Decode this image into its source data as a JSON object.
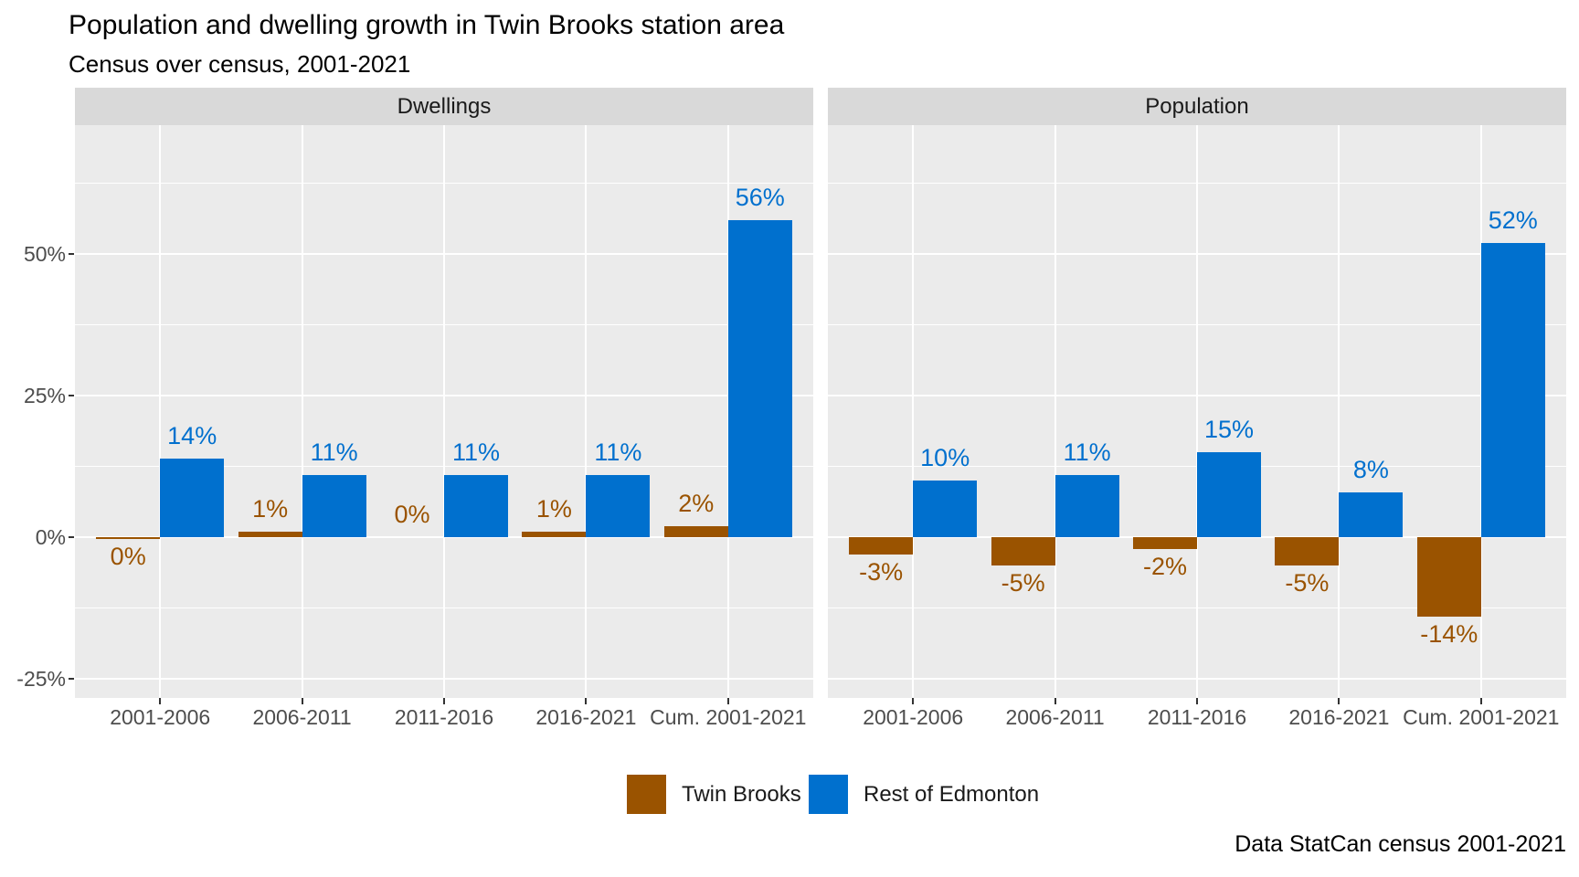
{
  "title": "Population and dwelling growth in Twin Brooks station area",
  "subtitle": "Census over census, 2001-2021",
  "caption": "Data StatCan census 2001-2021",
  "colors": {
    "twin_brooks": "#9A5300",
    "rest_of_edmonton": "#0070CE",
    "panel_background": "#EBEBEB",
    "strip_background": "#D9D9D9",
    "gridline": "#FFFFFF",
    "axis_text": "#4D4D4D"
  },
  "legend": {
    "items": [
      {
        "label": "Twin Brooks",
        "color": "#9A5300"
      },
      {
        "label": "Rest of Edmonton",
        "color": "#0070CE"
      }
    ]
  },
  "chart_data": {
    "type": "bar",
    "layout": "two facet panels, grouped (dodged) bars, shared y axis",
    "categories": [
      "2001-2006",
      "2006-2011",
      "2011-2016",
      "2016-2021",
      "Cum. 2001-2021"
    ],
    "y_axis": {
      "unit": "%",
      "tick_labels": [
        "50%",
        "25%",
        "0%",
        "-25%"
      ],
      "tick_values": [
        50,
        25,
        0,
        -25
      ],
      "minor_tick_values": [
        62.5,
        37.5,
        12.5,
        -12.5
      ],
      "ylim": [
        -29,
        73
      ],
      "grid": "white major and minor horizontal lines, white vertical line at each category center"
    },
    "panels": [
      {
        "title": "Dwellings",
        "series": [
          {
            "name": "Twin Brooks",
            "color": "#9A5300",
            "values": [
              0,
              1,
              0,
              1,
              2
            ],
            "labels": [
              "0%",
              "1%",
              "0%",
              "1%",
              "2%"
            ],
            "label_side": [
              "below",
              "above",
              "above",
              "above",
              "above"
            ]
          },
          {
            "name": "Rest of Edmonton",
            "color": "#0070CE",
            "values": [
              14,
              11,
              11,
              11,
              56
            ],
            "labels": [
              "14%",
              "11%",
              "11%",
              "11%",
              "56%"
            ],
            "label_side": [
              "above",
              "above",
              "above",
              "above",
              "above"
            ]
          }
        ]
      },
      {
        "title": "Population",
        "series": [
          {
            "name": "Twin Brooks",
            "color": "#9A5300",
            "values": [
              -3,
              -5,
              -2,
              -5,
              -14
            ],
            "labels": [
              "-3%",
              "-5%",
              "-2%",
              "-5%",
              "-14%"
            ],
            "label_side": [
              "below",
              "below",
              "below",
              "below",
              "below"
            ]
          },
          {
            "name": "Rest of Edmonton",
            "color": "#0070CE",
            "values": [
              10,
              11,
              15,
              8,
              52
            ],
            "labels": [
              "10%",
              "11%",
              "15%",
              "8%",
              "52%"
            ],
            "label_side": [
              "above",
              "above",
              "above",
              "above",
              "above"
            ]
          }
        ]
      }
    ]
  }
}
